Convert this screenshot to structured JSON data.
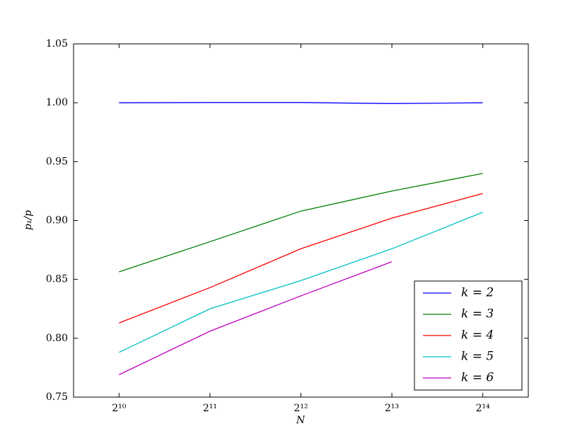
{
  "chart_data": {
    "type": "line",
    "x_label": "N",
    "y_label": "p₁/p",
    "x": [
      1024,
      2048,
      4096,
      8192,
      16384
    ],
    "xscale": "log2",
    "xlim": [
      724.08,
      23170.5
    ],
    "xticks": [
      {
        "value": 1024,
        "label": "2¹⁰"
      },
      {
        "value": 2048,
        "label": "2¹¹"
      },
      {
        "value": 4096,
        "label": "2¹²"
      },
      {
        "value": 8192,
        "label": "2¹³"
      },
      {
        "value": 16384,
        "label": "2¹⁴"
      }
    ],
    "ylim": [
      0.75,
      1.05
    ],
    "yticks": [
      0.75,
      {
        "value": 0.8,
        "label": "0.80"
      },
      0.85,
      {
        "value": 0.9,
        "label": "0.90"
      },
      0.95,
      {
        "value": 1.0,
        "label": "1.00"
      },
      1.05
    ],
    "legend": "lower right",
    "series": [
      {
        "name": "k = 2",
        "color": "#0000ff",
        "values": [
          1.0,
          1.0002,
          1.0002,
          0.9993,
          1.0
        ]
      },
      {
        "name": "k = 3",
        "color": "#008000",
        "values": [
          0.8564,
          0.882,
          0.908,
          0.925,
          0.94
        ]
      },
      {
        "name": "k = 4",
        "color": "#ff0000",
        "values": [
          0.813,
          0.843,
          0.876,
          0.902,
          0.923
        ]
      },
      {
        "name": "k = 5",
        "color": "#00bfbf",
        "values": [
          0.788,
          0.825,
          0.849,
          0.876,
          0.907
        ]
      },
      {
        "name": "k = 6",
        "color": "#bf00bf",
        "values": [
          0.769,
          0.806,
          0.836,
          0.865,
          null
        ]
      }
    ]
  }
}
